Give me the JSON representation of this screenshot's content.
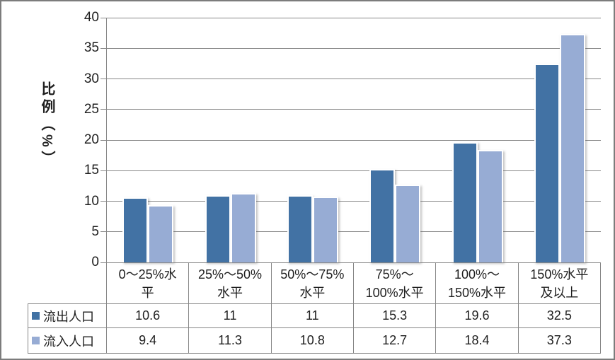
{
  "chart": {
    "y_axis_title": "比例（%）",
    "y_ticks": [
      40,
      35,
      30,
      25,
      20,
      15,
      10,
      5,
      0
    ],
    "y_max": 40,
    "colors": {
      "series_outflow": "#4272A4",
      "series_inflow": "#97ACD4",
      "gridline": "#878787",
      "frame": "#7C7C7C"
    }
  },
  "chart_data": {
    "type": "bar",
    "title": "",
    "xlabel": "",
    "ylabel": "比例（%）",
    "ylim": [
      0,
      40
    ],
    "grid": true,
    "legend_position": "data-table-left",
    "categories": [
      "0～25%水平",
      "25%～50%水平",
      "50%～75%水平",
      "75%～100%水平",
      "100%～150%水平",
      "150%水平及以上"
    ],
    "series": [
      {
        "name": "流出人口",
        "color": "#4272A4",
        "values": [
          10.6,
          11,
          11,
          15.3,
          19.6,
          32.5
        ]
      },
      {
        "name": "流入人口",
        "color": "#97ACD4",
        "values": [
          9.4,
          11.3,
          10.8,
          12.7,
          18.4,
          37.3
        ]
      }
    ]
  },
  "table": {
    "category_lines": {
      "c0": "0～25%水\n平",
      "c1": "25%～50%\n水平",
      "c2": "50%～75%\n水平",
      "c3": "75%～\n100%水平",
      "c4": "100%～\n150%水平",
      "c5": "150%水平\n及以上"
    },
    "rows": [
      {
        "label": "流出人口",
        "values": [
          "10.6",
          "11",
          "11",
          "15.3",
          "19.6",
          "32.5"
        ]
      },
      {
        "label": "流入人口",
        "values": [
          "9.4",
          "11.3",
          "10.8",
          "12.7",
          "18.4",
          "37.3"
        ]
      }
    ]
  }
}
